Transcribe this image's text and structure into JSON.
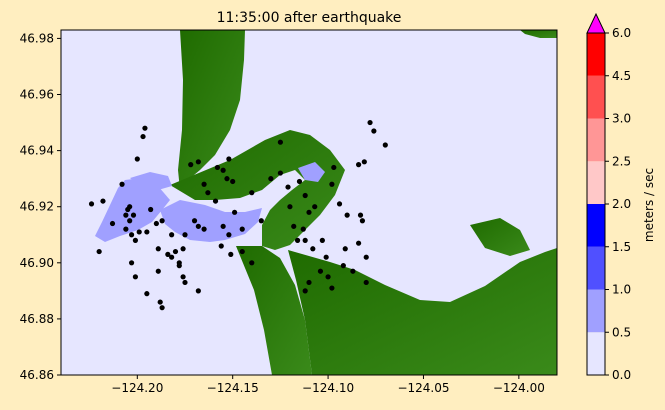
{
  "chart_data": {
    "type": "heatmap",
    "title": "11:35:00 after earthquake",
    "xlabel": "",
    "ylabel": "",
    "xlim": [
      -124.24,
      -123.98
    ],
    "ylim": [
      46.86,
      46.983
    ],
    "xticks": [
      -124.2,
      -124.15,
      -124.1,
      -124.05,
      -124.0
    ],
    "xtick_labels": [
      "−124.20",
      "−124.15",
      "−124.10",
      "−124.05",
      "−124.00"
    ],
    "yticks": [
      46.86,
      46.88,
      46.9,
      46.92,
      46.94,
      46.96,
      46.98
    ],
    "ytick_labels": [
      "46.86",
      "46.88",
      "46.90",
      "46.92",
      "46.94",
      "46.96",
      "46.98"
    ],
    "grid": false,
    "colorbar": {
      "label": "meters / sec",
      "levels": [
        0.0,
        0.5,
        1.0,
        1.5,
        2.0,
        2.5,
        3.0,
        4.5,
        6.0
      ],
      "tick_labels": [
        "0.0",
        "0.5",
        "1.0",
        "1.5",
        "2.0",
        "2.5",
        "3.0",
        "4.5",
        "6.0"
      ],
      "colors": [
        "#E6E6FF",
        "#A0A0FF",
        "#5050FF",
        "#0000FF",
        "#FFC8C8",
        "#FF9696",
        "#FF5050",
        "#FF0000"
      ],
      "extend_color": "#FF00FF"
    },
    "background_water_color": "#E6E6FF",
    "land_color": "#2E7D0C",
    "gauges": [
      [
        -124.224,
        46.921
      ],
      [
        -124.218,
        46.922
      ],
      [
        -124.213,
        46.914
      ],
      [
        -124.206,
        46.917
      ],
      [
        -124.205,
        46.919
      ],
      [
        -124.204,
        46.92
      ],
      [
        -124.204,
        46.915
      ],
      [
        -124.206,
        46.912
      ],
      [
        -124.202,
        46.917
      ],
      [
        -124.203,
        46.91
      ],
      [
        -124.201,
        46.908
      ],
      [
        -124.22,
        46.904
      ],
      [
        -124.208,
        46.928
      ],
      [
        -124.2,
        46.937
      ],
      [
        -124.197,
        46.945
      ],
      [
        -124.196,
        46.948
      ],
      [
        -124.199,
        46.911
      ],
      [
        -124.195,
        46.911
      ],
      [
        -124.193,
        46.919
      ],
      [
        -124.19,
        46.914
      ],
      [
        -124.187,
        46.915
      ],
      [
        -124.189,
        46.905
      ],
      [
        -124.184,
        46.903
      ],
      [
        -124.182,
        46.91
      ],
      [
        -124.18,
        46.904
      ],
      [
        -124.178,
        46.9
      ],
      [
        -124.176,
        46.905
      ],
      [
        -124.175,
        46.91
      ],
      [
        -124.203,
        46.9
      ],
      [
        -124.201,
        46.895
      ],
      [
        -124.195,
        46.889
      ],
      [
        -124.189,
        46.897
      ],
      [
        -124.188,
        46.886
      ],
      [
        -124.187,
        46.884
      ],
      [
        -124.182,
        46.902
      ],
      [
        -124.178,
        46.899
      ],
      [
        -124.172,
        46.935
      ],
      [
        -124.168,
        46.936
      ],
      [
        -124.165,
        46.928
      ],
      [
        -124.163,
        46.925
      ],
      [
        -124.158,
        46.934
      ],
      [
        -124.155,
        46.933
      ],
      [
        -124.152,
        46.937
      ],
      [
        -124.153,
        46.93
      ],
      [
        -124.15,
        46.929
      ],
      [
        -124.149,
        46.918
      ],
      [
        -124.152,
        46.91
      ],
      [
        -124.155,
        46.913
      ],
      [
        -124.156,
        46.906
      ],
      [
        -124.151,
        46.903
      ],
      [
        -124.145,
        46.904
      ],
      [
        -124.145,
        46.912
      ],
      [
        -124.14,
        46.925
      ],
      [
        -124.135,
        46.915
      ],
      [
        -124.13,
        46.93
      ],
      [
        -124.125,
        46.932
      ],
      [
        -124.121,
        46.927
      ],
      [
        -124.12,
        46.92
      ],
      [
        -124.115,
        46.929
      ],
      [
        -124.112,
        46.924
      ],
      [
        -124.11,
        46.918
      ],
      [
        -124.107,
        46.92
      ],
      [
        -124.113,
        46.912
      ],
      [
        -124.118,
        46.913
      ],
      [
        -124.116,
        46.908
      ],
      [
        -124.112,
        46.908
      ],
      [
        -124.108,
        46.905
      ],
      [
        -124.103,
        46.908
      ],
      [
        -124.101,
        46.902
      ],
      [
        -124.1,
        46.895
      ],
      [
        -124.098,
        46.891
      ],
      [
        -124.104,
        46.897
      ],
      [
        -124.11,
        46.893
      ],
      [
        -124.112,
        46.89
      ],
      [
        -124.097,
        46.934
      ],
      [
        -124.098,
        46.928
      ],
      [
        -124.094,
        46.921
      ],
      [
        -124.09,
        46.917
      ],
      [
        -124.084,
        46.935
      ],
      [
        -124.081,
        46.936
      ],
      [
        -124.078,
        46.95
      ],
      [
        -124.076,
        46.947
      ],
      [
        -124.07,
        46.942
      ],
      [
        -124.084,
        46.907
      ],
      [
        -124.08,
        46.902
      ],
      [
        -124.08,
        46.893
      ],
      [
        -124.092,
        46.899
      ],
      [
        -124.091,
        46.905
      ],
      [
        -124.17,
        46.915
      ],
      [
        -124.168,
        46.913
      ],
      [
        -124.165,
        46.912
      ],
      [
        -124.14,
        46.9
      ],
      [
        -124.175,
        46.893
      ],
      [
        -124.168,
        46.89
      ],
      [
        -124.159,
        46.922
      ],
      [
        -124.125,
        46.943
      ],
      [
        -124.176,
        46.895
      ],
      [
        -124.083,
        46.917
      ],
      [
        -124.087,
        46.897
      ],
      [
        -124.082,
        46.915
      ]
    ]
  }
}
